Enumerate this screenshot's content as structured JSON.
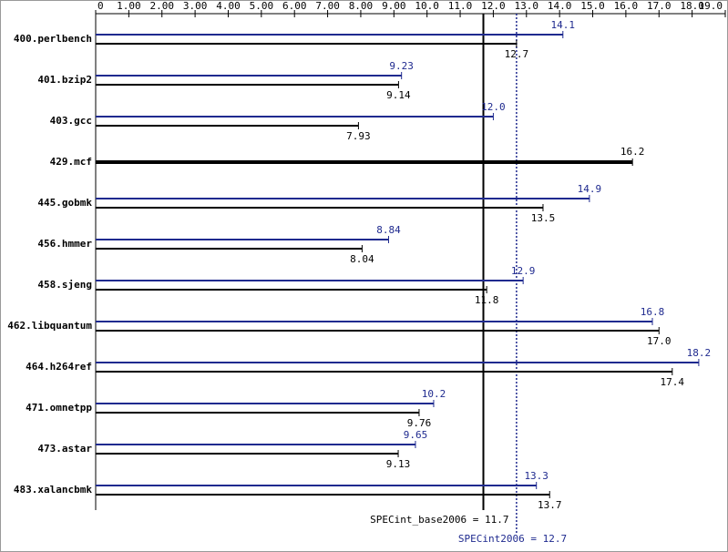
{
  "chart_data": {
    "type": "bar",
    "orientation": "horizontal",
    "categories": [
      "400.perlbench",
      "401.bzip2",
      "403.gcc",
      "429.mcf",
      "445.gobmk",
      "456.hmmer",
      "458.sjeng",
      "462.libquantum",
      "464.h264ref",
      "471.omnetpp",
      "473.astar",
      "483.xalancbmk"
    ],
    "series": [
      {
        "color": "#1f2a8f",
        "values": [
          14.1,
          9.23,
          12.0,
          null,
          14.9,
          8.84,
          12.9,
          16.8,
          18.2,
          10.2,
          9.65,
          13.3
        ],
        "value_labels": [
          "14.1",
          "9.23",
          "12.0",
          null,
          "14.9",
          "8.84",
          "12.9",
          "16.8",
          "18.2",
          "10.2",
          "9.65",
          "13.3"
        ]
      },
      {
        "color": "#000000",
        "values": [
          12.7,
          9.14,
          7.93,
          16.2,
          13.5,
          8.04,
          11.8,
          17.0,
          17.4,
          9.76,
          9.13,
          13.7
        ],
        "value_labels": [
          "12.7",
          "9.14",
          "7.93",
          "16.2",
          "13.5",
          "8.04",
          "11.8",
          "17.0",
          "17.4",
          "9.76",
          "9.13",
          "13.7"
        ]
      }
    ],
    "xlim": [
      0,
      19
    ],
    "xticks": [
      0,
      {
        "value": 1,
        "label": "1.00"
      },
      {
        "value": 2,
        "label": "2.00"
      },
      {
        "value": 3,
        "label": "3.00"
      },
      {
        "value": 4,
        "label": "4.00"
      },
      {
        "value": 5,
        "label": "5.00"
      },
      {
        "value": 6,
        "label": "6.00"
      },
      {
        "value": 7,
        "label": "7.00"
      },
      {
        "value": 8,
        "label": "8.00"
      },
      {
        "value": 9,
        "label": "9.00"
      },
      {
        "value": 10,
        "label": "10.0"
      },
      {
        "value": 11,
        "label": "11.0"
      },
      {
        "value": 12,
        "label": "12.0"
      },
      {
        "value": 13,
        "label": "13.0"
      },
      {
        "value": 14,
        "label": "14.0"
      },
      {
        "value": 15,
        "label": "15.0"
      },
      {
        "value": 16,
        "label": "16.0"
      },
      {
        "value": 17,
        "label": "17.0"
      },
      {
        "value": 18,
        "label": "18.0"
      },
      {
        "value": 19,
        "label": "19.0"
      }
    ],
    "reference_lines": [
      {
        "label": "SPECint_base2006 = 11.7",
        "value": 11.7,
        "color": "#000000",
        "dashed": false
      },
      {
        "label": "SPECint2006 = 12.7",
        "value": 12.7,
        "color": "#1f2a8f",
        "dashed": true
      }
    ]
  }
}
